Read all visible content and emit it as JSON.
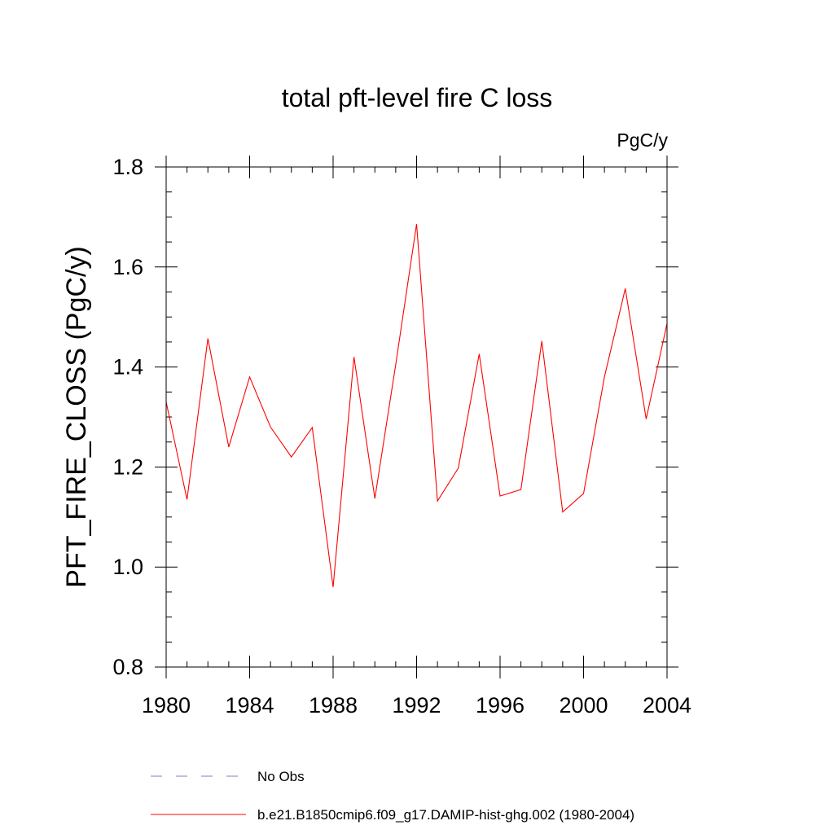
{
  "chart_data": {
    "type": "line",
    "title": "total pft-level fire C loss",
    "units": "PgC/y",
    "xlabel": "",
    "ylabel": "PFT_FIRE_CLOSS  (PgC/y)",
    "xlim": [
      1980,
      2004
    ],
    "ylim": [
      0.8,
      1.8
    ],
    "xticks": [
      1980,
      1984,
      1988,
      1992,
      1996,
      2000,
      2004
    ],
    "xtick_labels": [
      "1980",
      "1984",
      "1988",
      "1992",
      "1996",
      "2000",
      "2004"
    ],
    "yticks": [
      0.8,
      1.0,
      1.2,
      1.4,
      1.6,
      1.8
    ],
    "ytick_labels": [
      "0.8",
      "1.0",
      "1.2",
      "1.4",
      "1.6",
      "1.8"
    ],
    "grid": false,
    "legend_position": "bottom",
    "series": [
      {
        "name": "b.e21.B1850cmip6.f09_g17.DAMIP-hist-ghg.002 (1980-2004)",
        "color": "#ff0000",
        "style": "solid",
        "x": [
          1980,
          1981,
          1982,
          1983,
          1984,
          1985,
          1986,
          1987,
          1988,
          1989,
          1990,
          1991,
          1992,
          1993,
          1994,
          1995,
          1996,
          1997,
          1998,
          1999,
          2000,
          2001,
          2002,
          2003,
          2004
        ],
        "values": [
          1.33,
          1.135,
          1.457,
          1.24,
          1.38,
          1.28,
          1.22,
          1.279,
          0.96,
          1.42,
          1.137,
          1.405,
          1.686,
          1.132,
          1.198,
          1.426,
          1.142,
          1.155,
          1.452,
          1.11,
          1.147,
          1.38,
          1.557,
          1.296,
          1.487
        ]
      }
    ],
    "legend": [
      {
        "label": "No Obs",
        "color": "#7f7fbf",
        "style": "dashed"
      },
      {
        "label": "b.e21.B1850cmip6.f09_g17.DAMIP-hist-ghg.002 (1980-2004)",
        "color": "#ff0000",
        "style": "solid"
      }
    ]
  }
}
